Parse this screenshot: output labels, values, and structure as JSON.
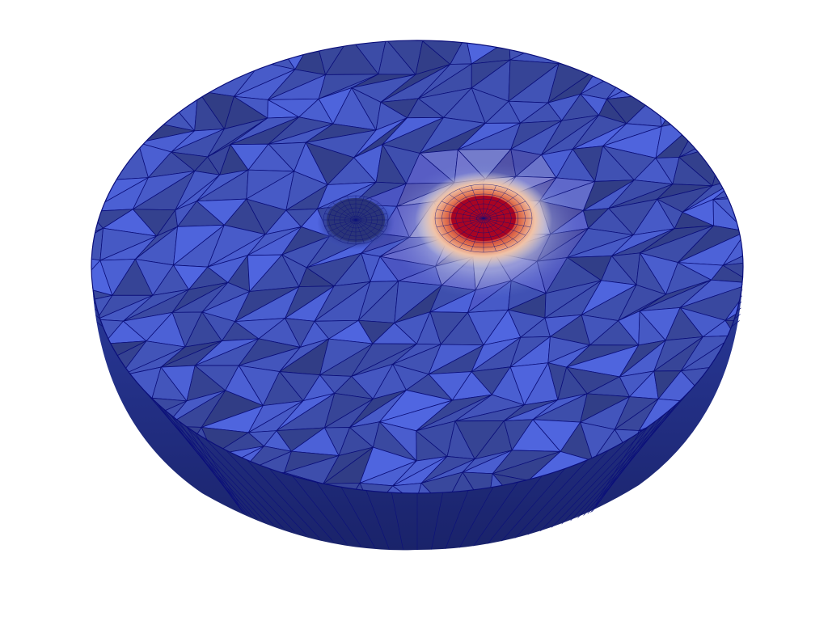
{
  "viewport": {
    "background_color": "#ffffff"
  },
  "mesh": {
    "edge_color": "#0b0f7a",
    "cold_color": "#3b4cc0",
    "neutral_color": "#dddddd",
    "hot_color": "#b40426",
    "peak_color": "#a10220",
    "shell_color": "#1f2c7a"
  },
  "icons": {
    "mesh-surface": "triangulated-hemisphere-cut",
    "hot-source": "red-circular-region",
    "cold-source": "dark-blue-circular-region"
  }
}
